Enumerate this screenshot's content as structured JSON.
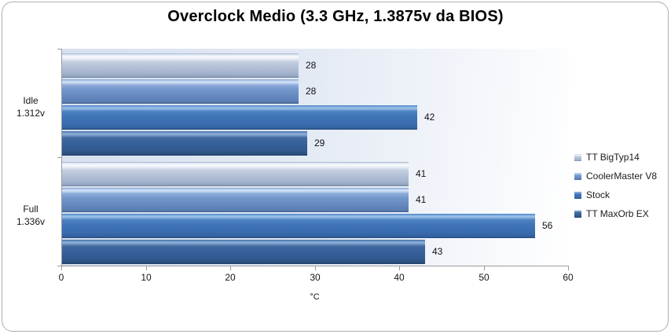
{
  "chart_data": {
    "type": "bar",
    "orientation": "horizontal",
    "title": "Overclock Medio (3.3 GHz, 1.3875v da BIOS)",
    "categories": [
      "Idle\n1.312v",
      "Full\n1.336v"
    ],
    "series": [
      {
        "name": "TT BigTyp14",
        "color": "#b6c3d9",
        "values": [
          28,
          41
        ]
      },
      {
        "name": "CoolerMaster V8",
        "color": "#7396cb",
        "values": [
          28,
          41
        ]
      },
      {
        "name": "Stock",
        "color": "#3f74b7",
        "values": [
          42,
          56
        ]
      },
      {
        "name": "TT MaxOrb EX",
        "color": "#38629c",
        "values": [
          29,
          43
        ]
      }
    ],
    "xlabel": "°C",
    "xlim": [
      0,
      60
    ],
    "xticks": [
      0,
      10,
      20,
      30,
      40,
      50,
      60
    ],
    "grid": false,
    "legend_position": "right",
    "data_labels": true,
    "plot_background": [
      "#d7e0ef",
      "#ffffff"
    ],
    "axis_color": "#9b9b9b"
  }
}
